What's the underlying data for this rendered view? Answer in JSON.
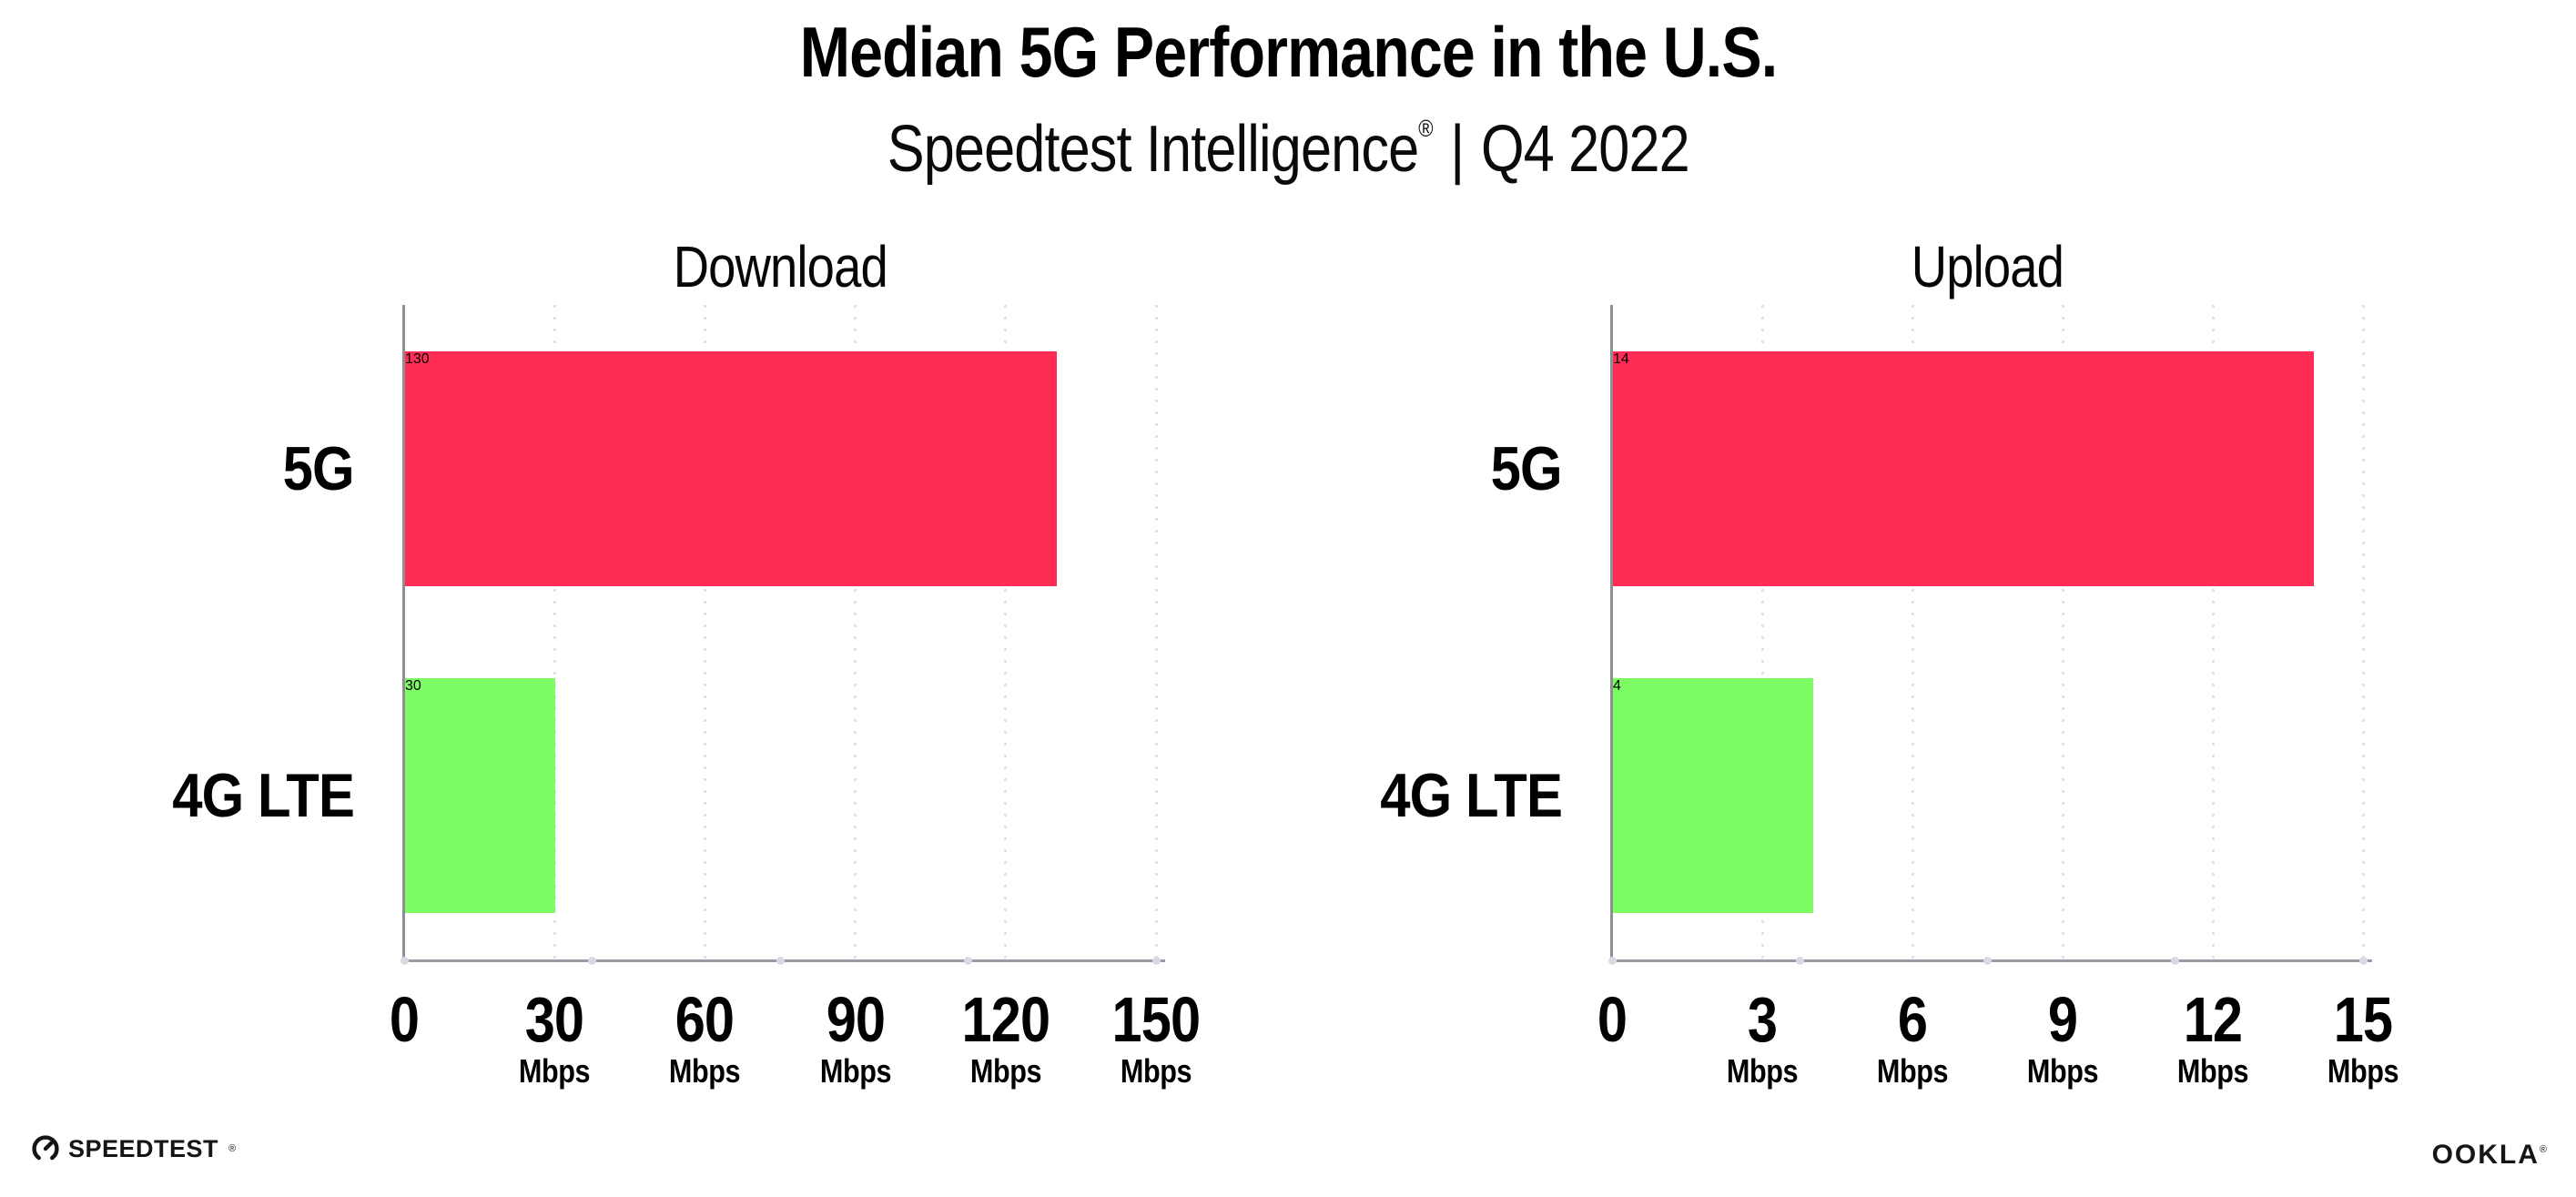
{
  "header": {
    "title": "Median 5G Performance in the U.S.",
    "subtitle": {
      "brand": "Speedtest Intelligence",
      "reg": "®",
      "sep": "|",
      "period": "Q4 2022"
    }
  },
  "chart_data": [
    {
      "type": "bar",
      "orientation": "horizontal",
      "title": "Download",
      "categories": [
        "5G",
        "4G LTE"
      ],
      "values": [
        130,
        30
      ],
      "unit": "Mbps",
      "xticks": [
        0,
        30,
        60,
        90,
        120,
        150
      ],
      "xlim": [
        0,
        150
      ],
      "bar_colors": [
        "#FF2D55",
        "#7EFC64"
      ],
      "grid": "dotted-vertical",
      "legend": "none"
    },
    {
      "type": "bar",
      "orientation": "horizontal",
      "title": "Upload",
      "categories": [
        "5G",
        "4G LTE"
      ],
      "values": [
        14,
        4
      ],
      "unit": "Mbps",
      "xticks": [
        0,
        3,
        6,
        9,
        12,
        15
      ],
      "xlim": [
        0,
        15
      ],
      "bar_colors": [
        "#FF2D55",
        "#7EFC64"
      ],
      "grid": "dotted-vertical",
      "legend": "none"
    }
  ],
  "footer": {
    "speedtest": {
      "label": "SPEEDTEST",
      "reg": "®"
    },
    "ookla": {
      "label": "OOKLA",
      "reg": "®"
    }
  },
  "colors": {
    "bar_5g": "#FF2D55",
    "bar_4g_lte": "#7EFC64",
    "axis": "#9a9aa2",
    "gridline": "#e0e0ea",
    "text": "#000000"
  }
}
